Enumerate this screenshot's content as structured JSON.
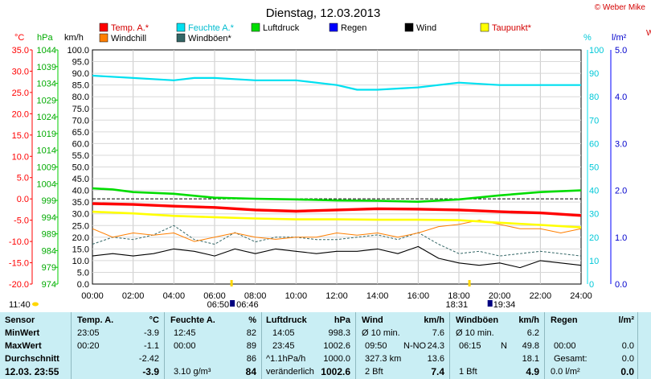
{
  "title": "Dienstag, 12.03.2013",
  "copyright": "© Weber Mike",
  "edge_label": "W",
  "axis_headers": {
    "temp": "°C",
    "press": "hPa",
    "wind": "km/h",
    "hum": "%",
    "rain": "l/m²"
  },
  "legend": [
    {
      "label": "Temp. A.*",
      "color": "#ff0000"
    },
    {
      "label": "Feuchte A.*",
      "color": "#00e0f0"
    },
    {
      "label": "Luftdruck",
      "color": "#00dd00"
    },
    {
      "label": "Regen",
      "color": "#0000ff"
    },
    {
      "label": "Wind",
      "color": "#000000"
    },
    {
      "label": "Taupunkt*",
      "color": "#ffff00"
    },
    {
      "label": "Windchill",
      "color": "#ff7f00"
    },
    {
      "label": "Windböen*",
      "color": "#336666"
    }
  ],
  "markers": {
    "sunrise": "06:50",
    "sunset": "18:31",
    "sunrise_hidden": "06:46",
    "sunset_hidden": "19:34",
    "sun_info": "11:40"
  },
  "chart_data": {
    "type": "line",
    "x_ticks": [
      "00:00",
      "02:00",
      "04:00",
      "06:00",
      "08:00",
      "10:00",
      "12:00",
      "14:00",
      "16:00",
      "18:00",
      "20:00",
      "22:00",
      "24:00"
    ],
    "axes": {
      "temp_ticks": [
        "35.0",
        "30.0",
        "25.0",
        "20.0",
        "15.0",
        "10.0",
        "5.0",
        "0.0",
        "-5.0",
        "-10.0",
        "-15.0",
        "-20.0"
      ],
      "press_ticks": [
        "1044",
        "1039",
        "1034",
        "1029",
        "1024",
        "1019",
        "1014",
        "1009",
        "1004",
        "999",
        "994",
        "989",
        "984",
        "979",
        "974"
      ],
      "wind_ticks": [
        "100.0",
        "95.0",
        "90.0",
        "85.0",
        "80.0",
        "75.0",
        "70.0",
        "65.0",
        "60.0",
        "55.0",
        "50.0",
        "45.0",
        "40.0",
        "35.0",
        "30.0",
        "25.0",
        "20.0",
        "15.0",
        "10.0",
        "5.0",
        "0.0"
      ],
      "hum_ticks": [
        "100",
        "90",
        "80",
        "70",
        "60",
        "50",
        "40",
        "30",
        "20",
        "10",
        "0"
      ],
      "rain_ticks": [
        "5.0",
        "4.0",
        "3.0",
        "2.0",
        "1.0",
        "0.0"
      ]
    },
    "series": [
      {
        "name": "Feuchte A.*",
        "unit": "%",
        "x": [
          0,
          2,
          4,
          5,
          6,
          8,
          10,
          12,
          13,
          14,
          16,
          18,
          20,
          22,
          24
        ],
        "values": [
          89,
          88,
          87,
          88,
          88,
          87,
          87,
          85,
          83,
          83,
          84,
          86,
          85,
          85,
          85
        ]
      },
      {
        "name": "Luftdruck",
        "unit": "hPa",
        "x": [
          0,
          1,
          2,
          4,
          6,
          8,
          10,
          12,
          14,
          16,
          18,
          20,
          22,
          24
        ],
        "values": [
          1002.6,
          1002.3,
          1001.5,
          1001.0,
          999.8,
          999.5,
          999.3,
          999.0,
          998.9,
          998.6,
          999.3,
          1000.5,
          1001.5,
          1002.0
        ]
      },
      {
        "name": "Temp. A.*",
        "unit": "°C",
        "x": [
          0,
          2,
          4,
          6,
          8,
          10,
          12,
          14,
          16,
          18,
          20,
          22,
          24
        ],
        "values": [
          -1.1,
          -1.3,
          -1.7,
          -2.0,
          -2.6,
          -2.9,
          -2.6,
          -2.3,
          -2.4,
          -2.6,
          -3.0,
          -3.3,
          -3.9
        ]
      },
      {
        "name": "Taupunkt*",
        "unit": "°C",
        "x": [
          0,
          2,
          4,
          6,
          8,
          10,
          12,
          14,
          16,
          18,
          20,
          22,
          24
        ],
        "values": [
          -3.0,
          -3.4,
          -4.0,
          -4.3,
          -4.6,
          -4.8,
          -4.8,
          -4.9,
          -4.9,
          -5.0,
          -5.6,
          -6.1,
          -6.7
        ]
      },
      {
        "name": "Windchill",
        "unit": "°C",
        "x": [
          0,
          1,
          2,
          3,
          4,
          5,
          6,
          7,
          8,
          9,
          10,
          11,
          12,
          13,
          14,
          15,
          16,
          17,
          18,
          19,
          20,
          21,
          22,
          23,
          24
        ],
        "values": [
          -7,
          -9,
          -8,
          -8.5,
          -8,
          -10,
          -9,
          -8,
          -9,
          -9.5,
          -9,
          -9,
          -8,
          -8.5,
          -8,
          -9,
          -8,
          -6.5,
          -6,
          -5,
          -6,
          -7,
          -7,
          -8,
          -7
        ]
      },
      {
        "name": "Windböen*",
        "unit": "km/h",
        "x": [
          0,
          1,
          2,
          3,
          4,
          5,
          6,
          7,
          8,
          9,
          10,
          11,
          12,
          13,
          14,
          15,
          16,
          17,
          18,
          19,
          20,
          21,
          22,
          23,
          24
        ],
        "values": [
          17,
          20,
          19,
          21,
          25,
          19,
          17,
          22,
          18,
          20,
          20,
          19,
          19,
          20,
          21,
          19,
          22,
          17,
          13,
          14,
          12,
          13,
          14,
          13,
          12
        ]
      },
      {
        "name": "Wind",
        "unit": "km/h",
        "x": [
          0,
          1,
          2,
          3,
          4,
          5,
          6,
          7,
          8,
          9,
          10,
          11,
          12,
          13,
          14,
          15,
          16,
          17,
          18,
          19,
          20,
          21,
          22,
          23,
          24
        ],
        "values": [
          12,
          13,
          12,
          13,
          15,
          14,
          12,
          15,
          13,
          15,
          14,
          13,
          14,
          14,
          15,
          13,
          16,
          11,
          9,
          8,
          9,
          7,
          10,
          9,
          8
        ]
      }
    ]
  },
  "table": {
    "headers": {
      "sensor": "Sensor",
      "temp": "Temp. A.",
      "temp_unit": "°C",
      "hum": "Feuchte A.",
      "hum_unit": "%",
      "press": "Luftdruck",
      "press_unit": "hPa",
      "wind": "Wind",
      "wind_unit": "km/h",
      "gust": "Windböen",
      "gust_unit": "km/h",
      "rain": "Regen",
      "rain_unit": "l/m²"
    },
    "rows": [
      {
        "label": "MinWert",
        "temp_time": "23:05",
        "temp": "-3.9",
        "hum_time": "12:45",
        "hum": "82",
        "press_time": "14:05",
        "press": "998.3",
        "wind_time": "Ø 10 min.",
        "wind_dir": "",
        "wind": "7.6",
        "gust_time": "Ø 10 min.",
        "gust_dir": "",
        "gust": "6.2",
        "rain_time": "",
        "rain": ""
      },
      {
        "label": "MaxWert",
        "temp_time": "00:20",
        "temp": "-1.1",
        "hum_time": "00:00",
        "hum": "89",
        "press_time": "23:45",
        "press": "1002.6",
        "wind_time": "09:50",
        "wind_dir": "N-NO",
        "wind": "24.3",
        "gust_time": "06:15",
        "gust_dir": "N",
        "gust": "49.8",
        "rain_time": "00:00",
        "rain": "0.0"
      },
      {
        "label": "Durchschnitt",
        "temp_time": "",
        "temp": "-2.42",
        "hum_time": "",
        "hum": "86",
        "press_time": "^1.1hPa/h",
        "press": "1000.0",
        "wind_time": "327.3 km",
        "wind_dir": "",
        "wind": "13.6",
        "gust_time": "",
        "gust_dir": "",
        "gust": "18.1",
        "rain_time": "Gesamt:",
        "rain": "0.0"
      },
      {
        "label": "12.03.  23:55",
        "temp_time": "",
        "temp": "-3.9",
        "hum_time": "3.10 g/m³",
        "hum": "84",
        "press_time": "veränderlich",
        "press": "1002.6",
        "wind_time": "2 Bft",
        "wind_dir": "",
        "wind": "7.4",
        "gust_time": "1 Bft",
        "gust_dir": "",
        "gust": "4.9",
        "rain_time": "0.0 l/m²",
        "rain": "0.0"
      }
    ]
  }
}
